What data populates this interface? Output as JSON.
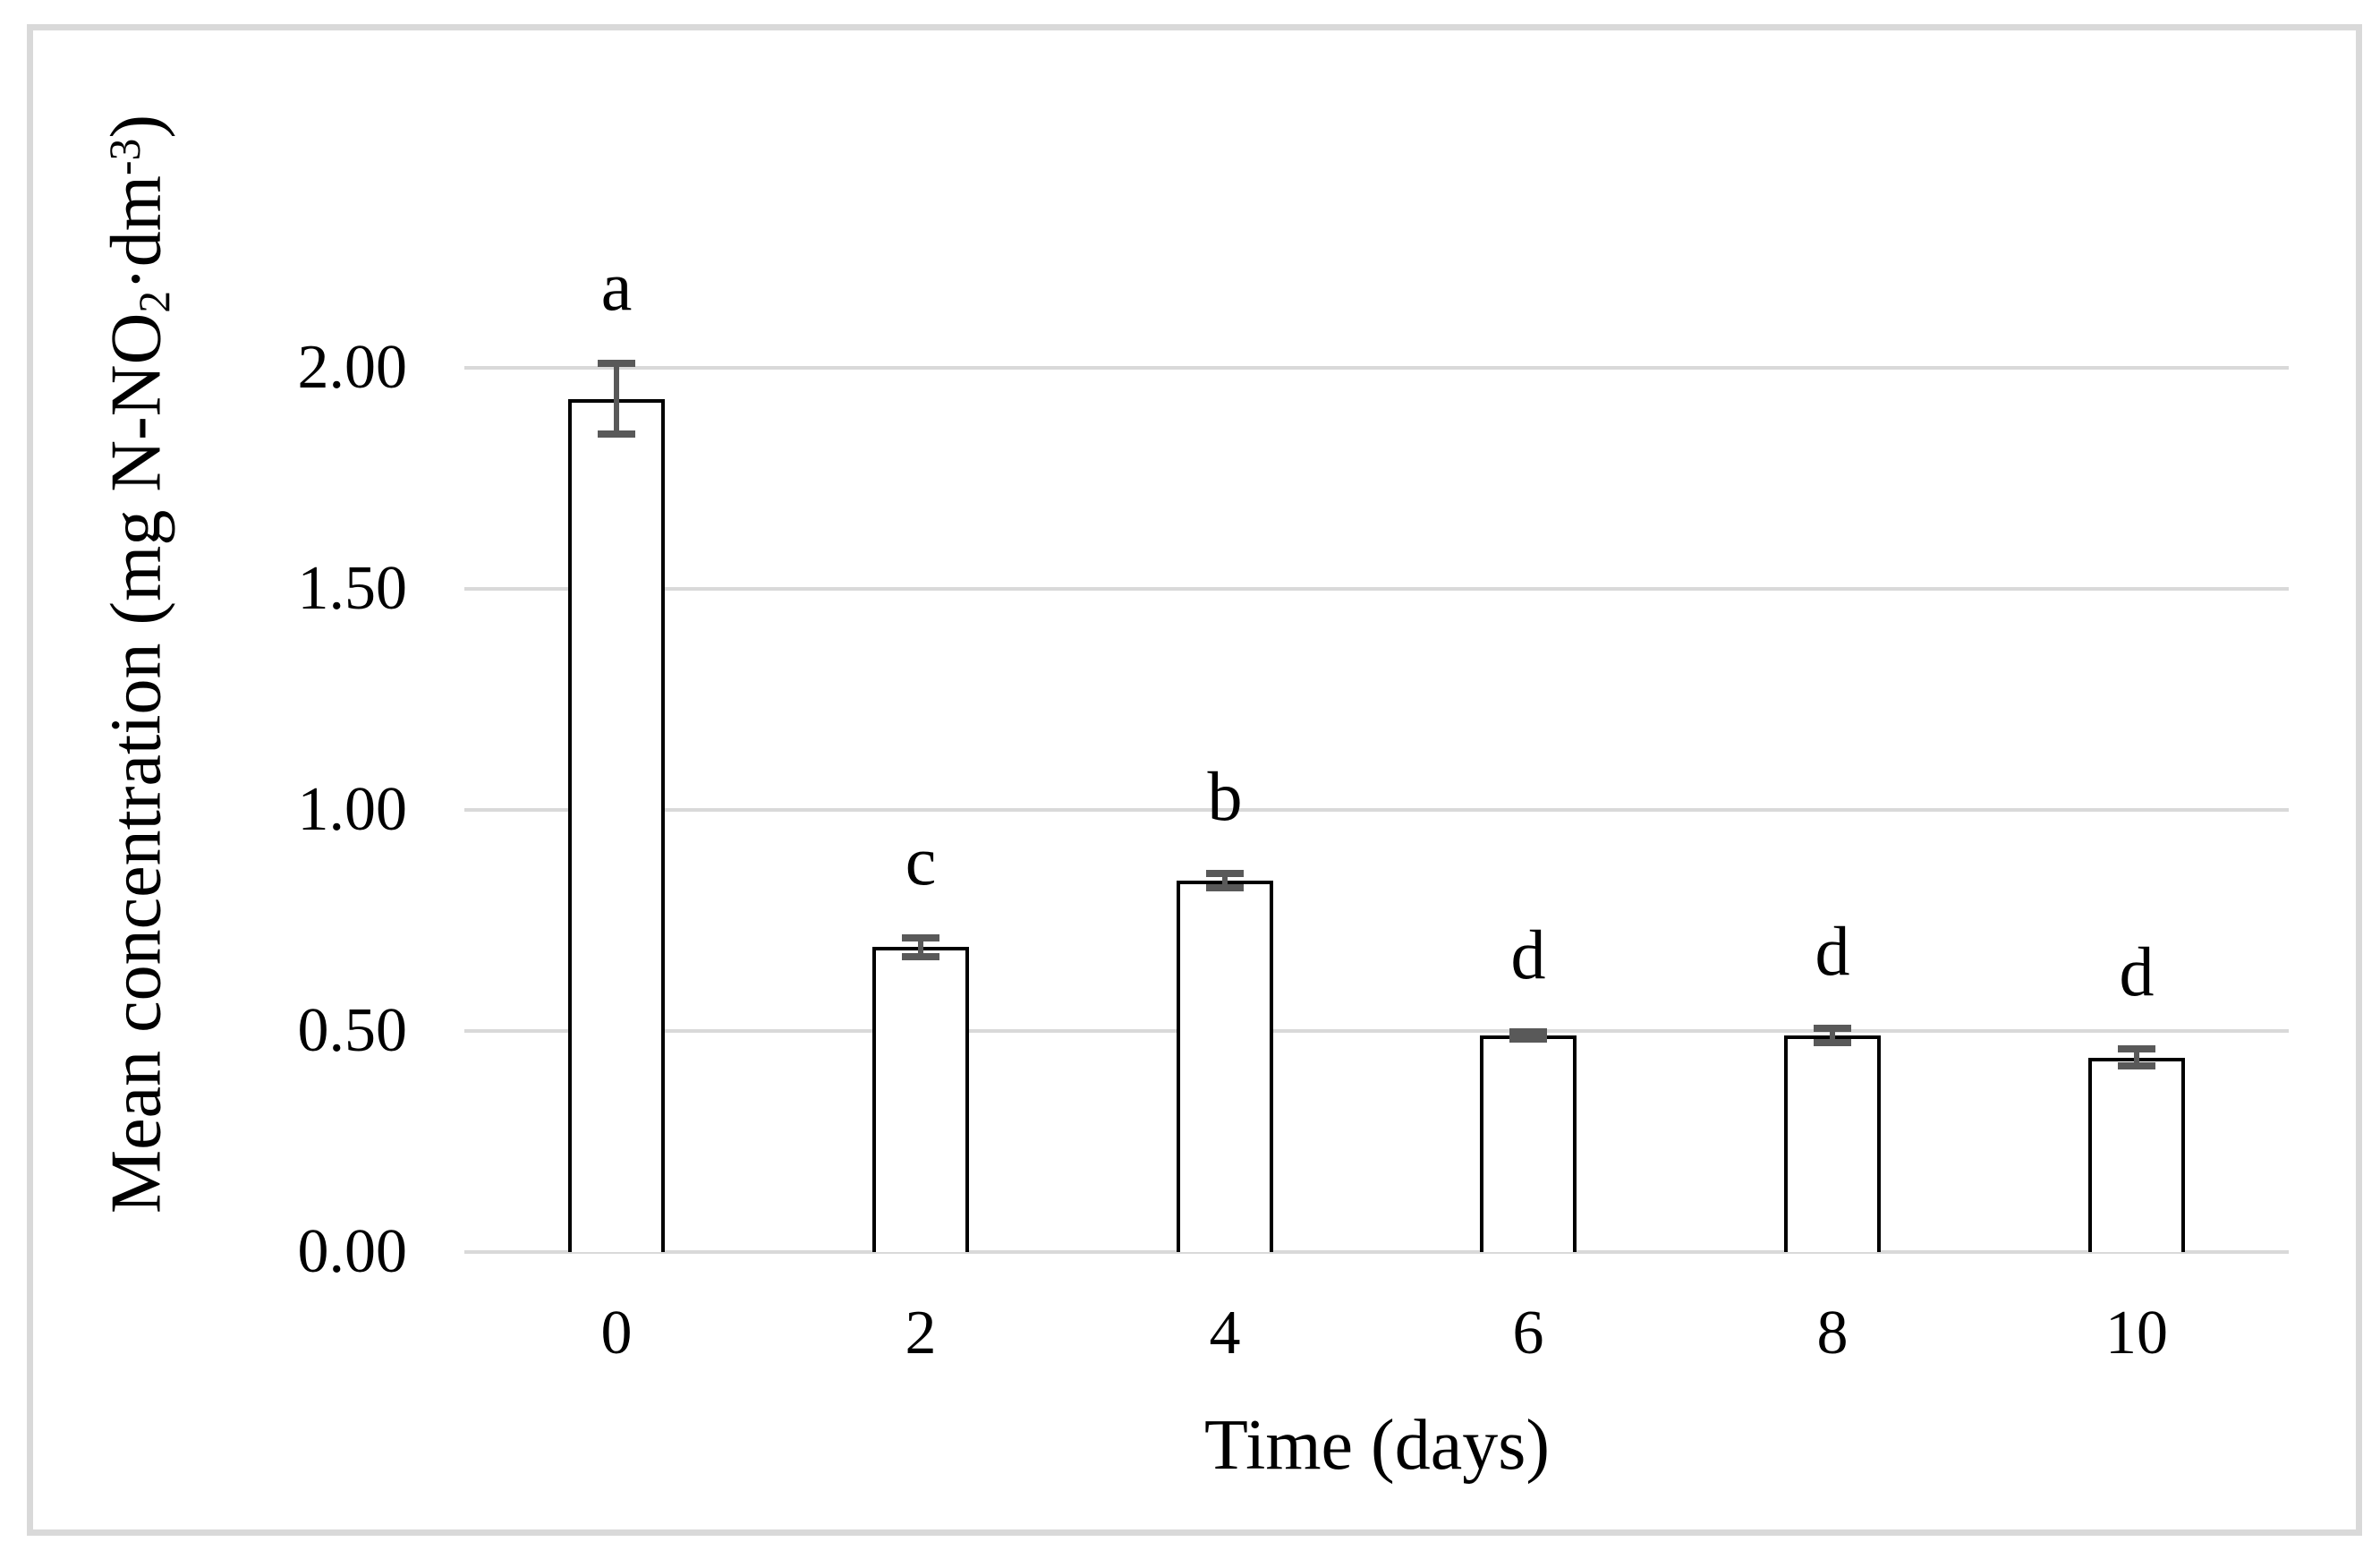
{
  "figure": {
    "background": "#ffffff",
    "border_color": "#d9d9d9"
  },
  "chart_data": {
    "type": "bar",
    "title": "",
    "xlabel": "Time (days)",
    "ylabel": "Mean concentration (mg N-NO₂·dm⁻³)",
    "ylabel_rich": [
      {
        "text": "Mean concentration (mg N-NO",
        "script": "normal"
      },
      {
        "text": "2",
        "script": "sub"
      },
      {
        "text": "·dm",
        "script": "normal"
      },
      {
        "text": "-3",
        "script": "sup"
      },
      {
        "text": ")",
        "script": "normal"
      }
    ],
    "categories": [
      "0",
      "2",
      "4",
      "6",
      "8",
      "10"
    ],
    "values": [
      1.93,
      0.69,
      0.84,
      0.49,
      0.49,
      0.44
    ],
    "errors": [
      0.08,
      0.021,
      0.016,
      0.008,
      0.017,
      0.019
    ],
    "significance_letters": [
      "a",
      "c",
      "b",
      "d",
      "d",
      "d"
    ],
    "y_ticks": [
      {
        "value": 0.0,
        "label": "0.00"
      },
      {
        "value": 0.5,
        "label": "0.50"
      },
      {
        "value": 1.0,
        "label": "1.00"
      },
      {
        "value": 1.5,
        "label": "1.50"
      },
      {
        "value": 2.0,
        "label": "2.00"
      }
    ],
    "ylim": [
      0,
      2.3
    ],
    "grid": true,
    "legend": "none",
    "style": {
      "bar_fill": "#ffffff",
      "bar_border": "#000000",
      "error_bar_color": "#595959",
      "gridline_color": "#d9d9d9",
      "text_color": "#000000"
    }
  }
}
